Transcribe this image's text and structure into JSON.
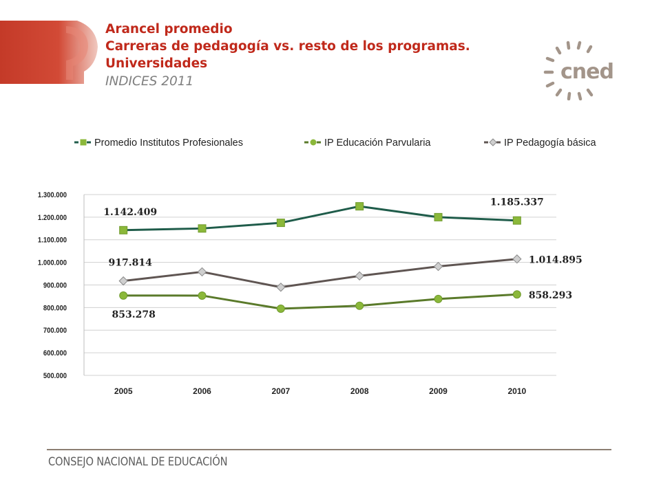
{
  "title": {
    "line1": "Arancel promedio",
    "line2": "Carreras de pedagogía vs. resto  de los programas.",
    "line3": "Universidades",
    "line4": "INDICES 2011"
  },
  "logo": {
    "text": "cned",
    "icon": "sun-rays-logo"
  },
  "footer": {
    "text": "CONSEJO NACIONAL DE EDUCACIÓN"
  },
  "colors": {
    "brand_red": "#c0291b",
    "footer_gray": "#5e5e5e"
  },
  "chart_data": {
    "type": "line",
    "categories": [
      "2005",
      "2006",
      "2007",
      "2008",
      "2009",
      "2010"
    ],
    "ylim": [
      500000,
      1300000
    ],
    "yticks": [
      "500.000",
      "600.000",
      "700.000",
      "800.000",
      "900.000",
      "1.000.000",
      "1.100.000",
      "1.200.000",
      "1.300.000"
    ],
    "grid": true,
    "legend": "top",
    "series": [
      {
        "name": "Promedio Institutos Profesionales",
        "color": "#1f5c4a",
        "marker": "square",
        "marker_color": "#8bb83a",
        "values": [
          1142409,
          1150000,
          1175000,
          1248000,
          1200000,
          1185337
        ]
      },
      {
        "name": "IP Educación Parvularia",
        "color": "#5a7a2a",
        "marker": "circle",
        "marker_color": "#8bb83a",
        "values": [
          853278,
          853000,
          795000,
          808000,
          838000,
          858293
        ]
      },
      {
        "name": "IP Pedagogía básica",
        "color": "#5f5552",
        "marker": "diamond",
        "marker_color": "#cfcfcf",
        "values": [
          917814,
          958000,
          890000,
          940000,
          982000,
          1014895
        ]
      }
    ],
    "annotations": [
      {
        "series": 0,
        "index": 0,
        "text": "1.142.409",
        "pos": "above"
      },
      {
        "series": 0,
        "index": 5,
        "text": "1.185.337",
        "pos": "above"
      },
      {
        "series": 2,
        "index": 0,
        "text": "917.814",
        "pos": "above"
      },
      {
        "series": 2,
        "index": 5,
        "text": "1.014.895",
        "pos": "right"
      },
      {
        "series": 1,
        "index": 0,
        "text": "853.278",
        "pos": "below"
      },
      {
        "series": 1,
        "index": 5,
        "text": "858.293",
        "pos": "right"
      }
    ]
  }
}
